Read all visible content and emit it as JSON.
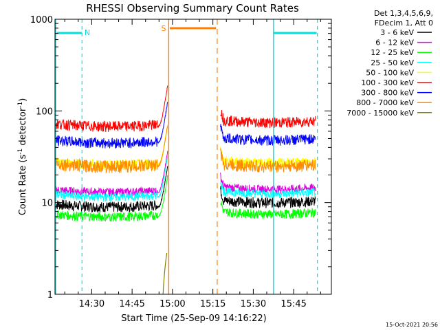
{
  "chart_data": {
    "type": "line",
    "title": "RHESSI Observing Summary Count Rates",
    "xlabel": "Start Time (25-Sep-09 14:16:22)",
    "ylabel_main": "Count Rate (s",
    "ylabel_sup1": "-1",
    "ylabel_mid": " detector",
    "ylabel_sup2": "-1",
    "ylabel_end": ")",
    "yscale": "log",
    "ylim": [
      1,
      1000
    ],
    "x_ticks": [
      {
        "t": 870,
        "label": "14:30"
      },
      {
        "t": 885,
        "label": "14:45"
      },
      {
        "t": 900,
        "label": "15:00"
      },
      {
        "t": 915,
        "label": "15:15"
      },
      {
        "t": 930,
        "label": "15:30"
      },
      {
        "t": 945,
        "label": "15:45"
      }
    ],
    "y_ticks": [
      {
        "v": 1,
        "label": "1"
      },
      {
        "v": 10,
        "label": "10"
      },
      {
        "v": 100,
        "label": "100"
      },
      {
        "v": 1000,
        "label": "1000"
      }
    ],
    "legend": {
      "header": [
        "Det 1,3,4,5,6,9,",
        "FDecim 1, Att 0"
      ],
      "placement": "right"
    },
    "series": [
      {
        "name": "3 - 6 keV",
        "color": "#000000",
        "level1": 9,
        "level2": 10,
        "noise": 1.5
      },
      {
        "name": "6 - 12 keV",
        "color": "#e000e0",
        "level1": 13,
        "level2": 14,
        "noise": 1.2
      },
      {
        "name": "12 - 25 keV",
        "color": "#00ff00",
        "level1": 7,
        "level2": 7.5,
        "noise": 1.3
      },
      {
        "name": "25 - 50 keV",
        "color": "#00ffff",
        "level1": 11.5,
        "level2": 12.5,
        "noise": 1.2
      },
      {
        "name": "50 - 100 keV",
        "color": "#ffff00",
        "level1": 26,
        "level2": 27,
        "noise": 1.5
      },
      {
        "name": "100 - 300 keV",
        "color": "#ff0000",
        "level1": 68,
        "level2": 75,
        "noise": 1.5
      },
      {
        "name": "300 - 800 keV",
        "color": "#0000ff",
        "level1": 45,
        "level2": 48,
        "noise": 1.5
      },
      {
        "name": "800 - 7000 keV",
        "color": "#ff8c00",
        "level1": 25,
        "level2": 25,
        "noise": 1.8
      },
      {
        "name": "7000 - 15000 keV",
        "color": "#808000",
        "level1": 0,
        "level2": 0,
        "noise": 0
      }
    ],
    "annotations": {
      "night_label": "N",
      "saa_label": "S",
      "night_color": "#00e0e0",
      "saa_color": "#ff8000"
    },
    "timestamp": "15-Oct-2021 20:56"
  }
}
